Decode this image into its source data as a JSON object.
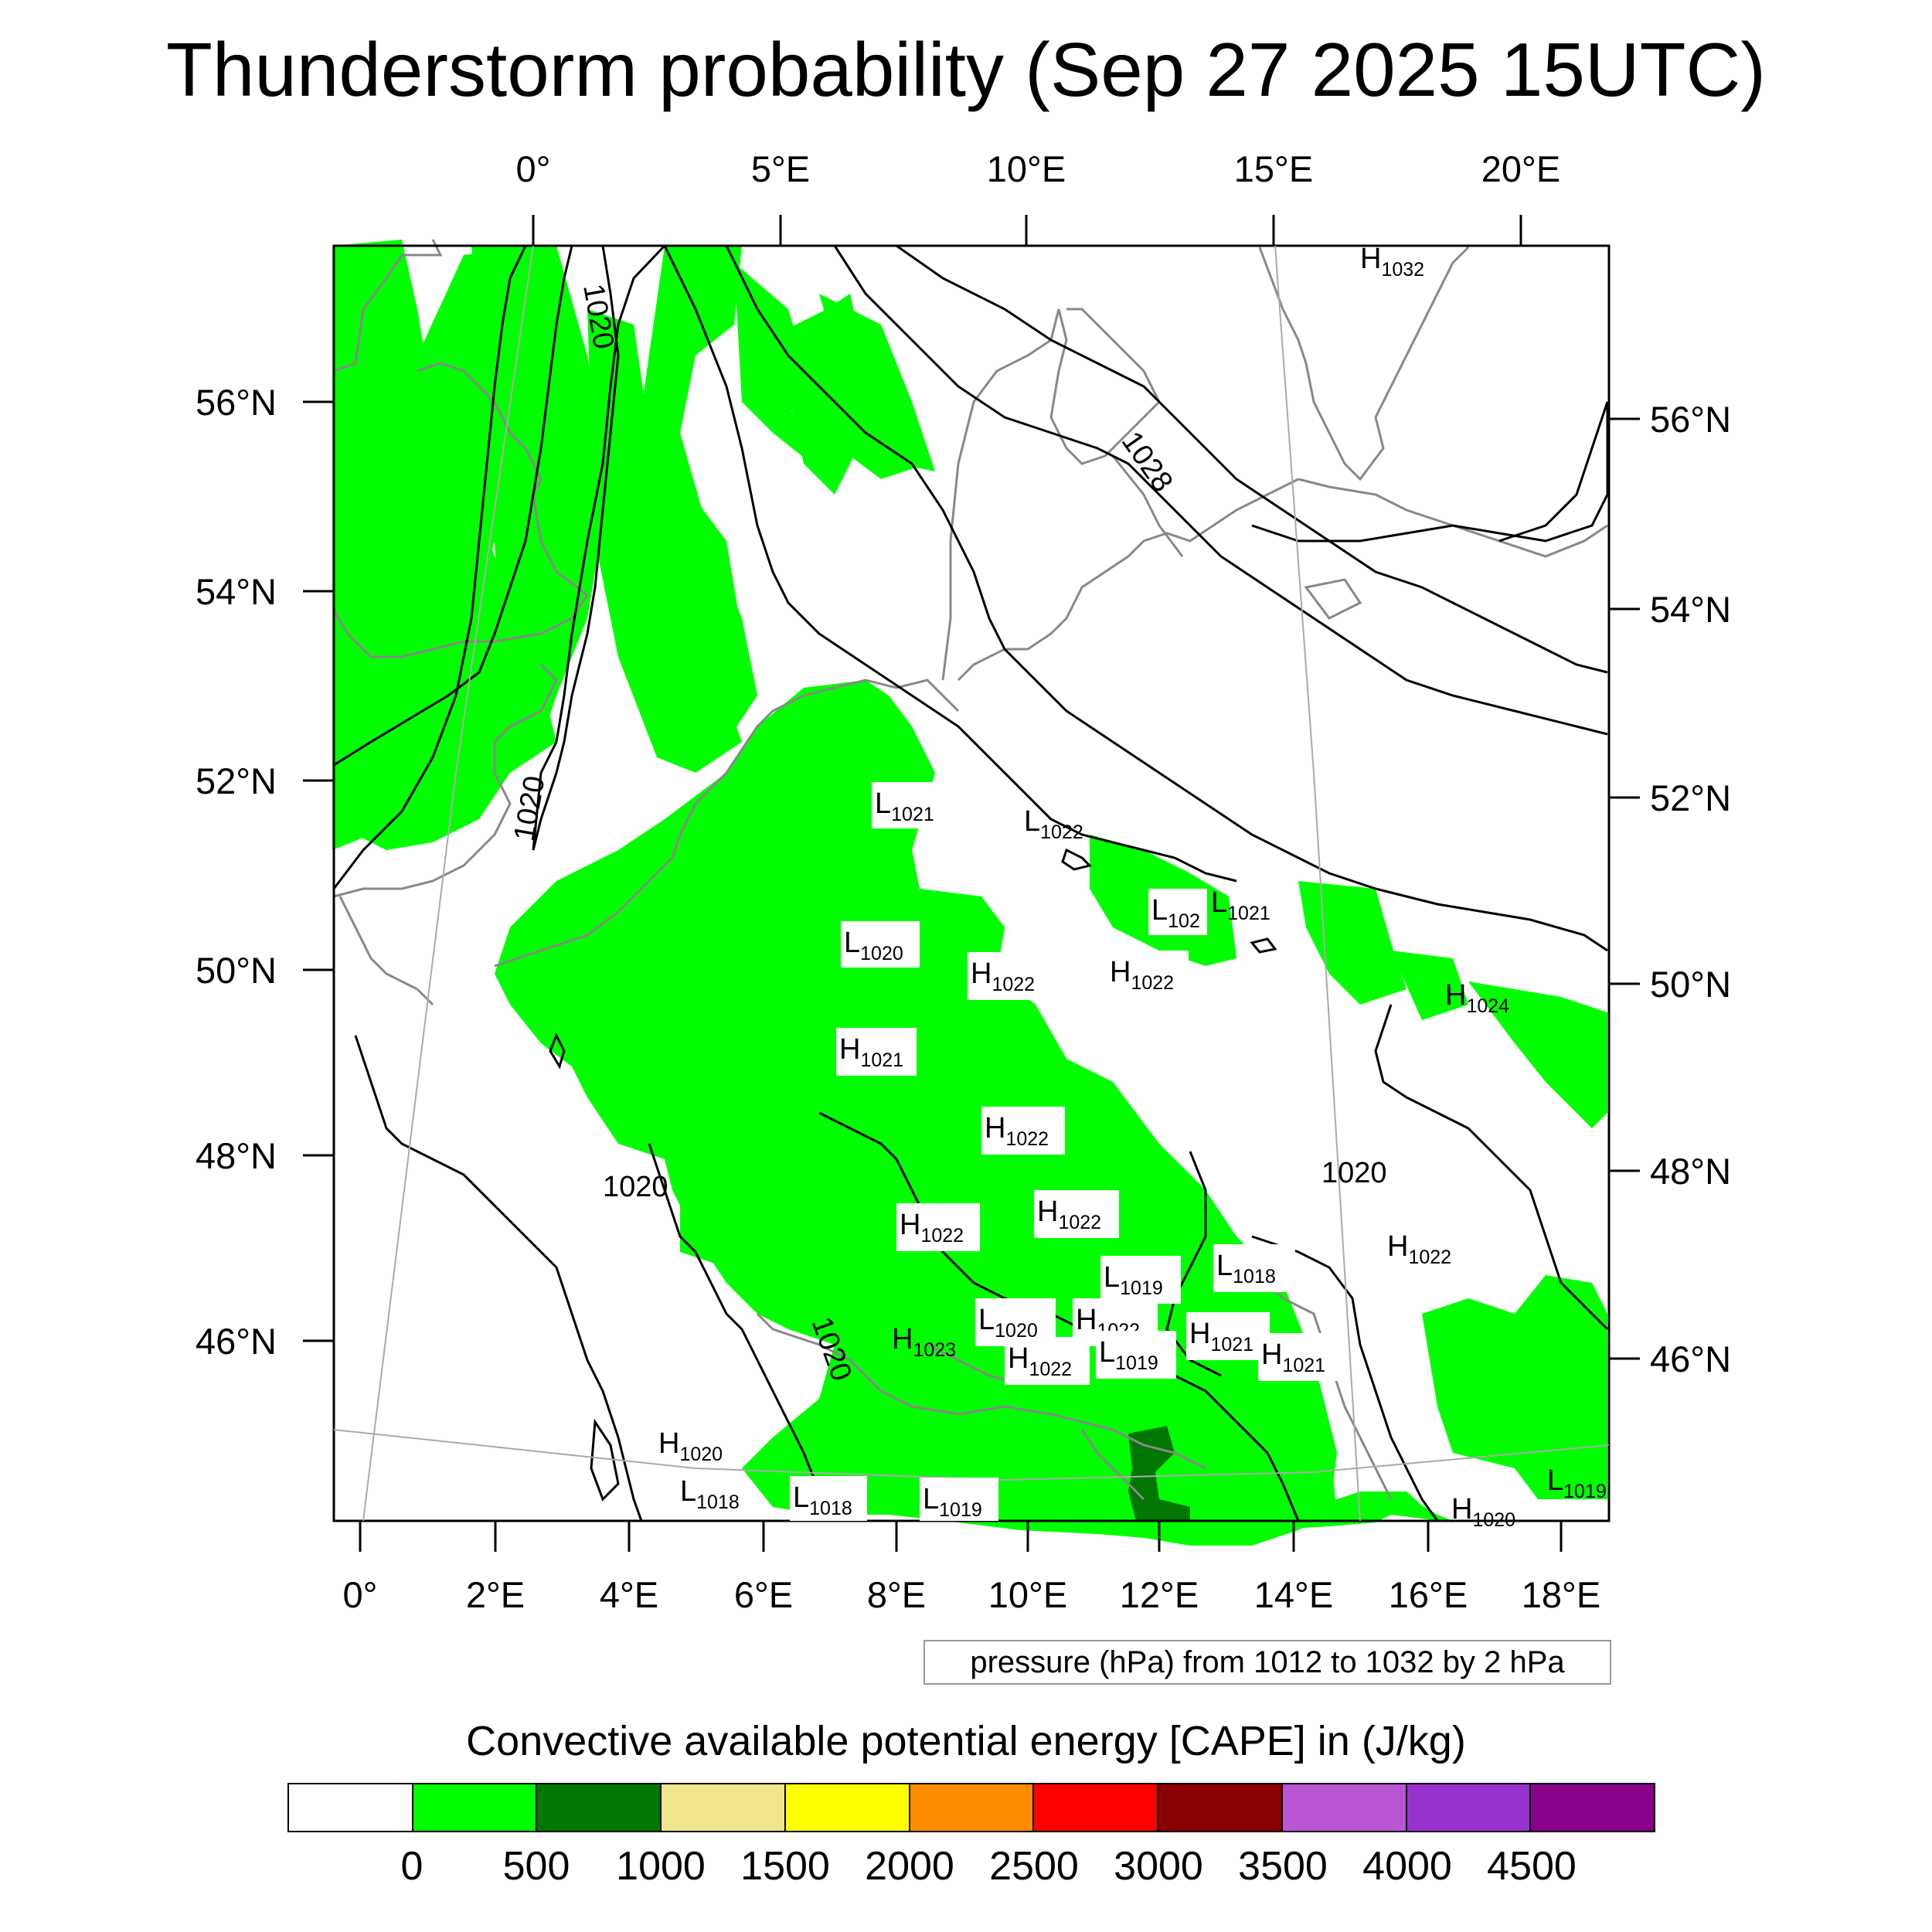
{
  "title": "Thunderstorm probability (Sep 27 2025 15UTC)",
  "top_axis_labels": [
    "0°",
    "5°E",
    "10°E",
    "15°E",
    "20°E"
  ],
  "bottom_axis_labels": [
    "0°",
    "2°E",
    "4°E",
    "6°E",
    "8°E",
    "10°E",
    "12°E",
    "14°E",
    "16°E",
    "18°E"
  ],
  "left_axis_labels": [
    "56°N",
    "54°N",
    "52°N",
    "50°N",
    "48°N",
    "46°N"
  ],
  "right_axis_labels": [
    "56°N",
    "54°N",
    "52°N",
    "50°N",
    "48°N",
    "46°N"
  ],
  "isobar_labels": [
    "1020",
    "1020",
    "1028",
    "1020",
    "1020",
    "1020"
  ],
  "pressure_centers": [
    {
      "letter": "H",
      "value": "1032"
    },
    {
      "letter": "L",
      "value": "1021"
    },
    {
      "letter": "L",
      "value": "1022"
    },
    {
      "letter": "L",
      "value": "102"
    },
    {
      "letter": "L",
      "value": "1021"
    },
    {
      "letter": "L",
      "value": "1020"
    },
    {
      "letter": "H",
      "value": "1022"
    },
    {
      "letter": "H",
      "value": "1022"
    },
    {
      "letter": "H",
      "value": "1024"
    },
    {
      "letter": "H",
      "value": "1021"
    },
    {
      "letter": "H",
      "value": "1022"
    },
    {
      "letter": "H",
      "value": "1022"
    },
    {
      "letter": "H",
      "value": "1022"
    },
    {
      "letter": "H",
      "value": "1022"
    },
    {
      "letter": "L",
      "value": "1019"
    },
    {
      "letter": "L",
      "value": "1018"
    },
    {
      "letter": "L",
      "value": "1020"
    },
    {
      "letter": "H",
      "value": "1022"
    },
    {
      "letter": "H",
      "value": "1021"
    },
    {
      "letter": "H",
      "value": "1023"
    },
    {
      "letter": "H",
      "value": "1022"
    },
    {
      "letter": "L",
      "value": "1019"
    },
    {
      "letter": "H",
      "value": "1021"
    },
    {
      "letter": "H",
      "value": "1020"
    },
    {
      "letter": "L",
      "value": "1018"
    },
    {
      "letter": "L",
      "value": "1018"
    },
    {
      "letter": "L",
      "value": "1019"
    },
    {
      "letter": "L",
      "value": "1019"
    },
    {
      "letter": "H",
      "value": "1020"
    }
  ],
  "pressure_note": "pressure (hPa) from 1012 to 1032 by 2 hPa",
  "legend": {
    "title": "Convective available potential energy [CAPE] in (J/kg)",
    "colors": [
      "#ffffff",
      "#00ff00",
      "#007700",
      "#f0e68c",
      "#ffff00",
      "#ff8c00",
      "#ff0000",
      "#8b0000",
      "#ba55d3",
      "#9932cc",
      "#8b008b"
    ],
    "labels": [
      "0",
      "500",
      "1000",
      "1500",
      "2000",
      "2500",
      "3000",
      "3500",
      "4000",
      "4500"
    ]
  },
  "colors": {
    "cape_low": "#00ff00",
    "cape_mid": "#007700",
    "coastline": "#888888",
    "isobar": "#000000"
  }
}
